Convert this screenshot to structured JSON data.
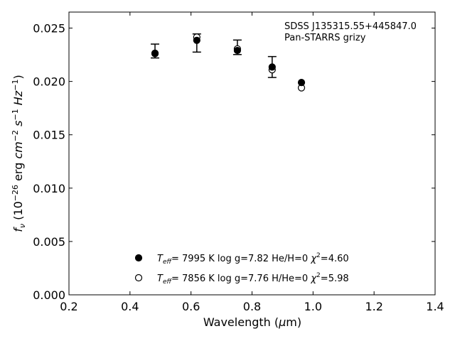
{
  "chart_data": {
    "type": "scatter",
    "annotation": [
      "SDSS J135315.55+445847.0",
      "Pan-STARRS grizy"
    ],
    "xlabel": "Wavelength (μm)",
    "ylabel": "f_ν (10^-26 erg cm^-2 s^-1 Hz^-1)",
    "xlim": [
      0.2,
      1.4
    ],
    "ylim": [
      0.0,
      0.0265
    ],
    "xticks": [
      0.2,
      0.4,
      0.6,
      0.8,
      1.0,
      1.2,
      1.4
    ],
    "xtick_labels": [
      "0.2",
      "0.4",
      "0.6",
      "0.8",
      "1.0",
      "1.2",
      "1.4"
    ],
    "yticks": [
      0.0,
      0.005,
      0.01,
      0.015,
      0.02,
      0.025
    ],
    "ytick_labels": [
      "0.000",
      "0.005",
      "0.010",
      "0.015",
      "0.020",
      "0.025"
    ],
    "grid": false,
    "legend_position": "lower-center",
    "series": [
      {
        "name": "Teff= 7995 K log g=7.82 He/H=0 χ2=4.60",
        "marker": "filled-circle",
        "x": [
          0.482,
          0.619,
          0.752,
          0.866,
          0.962
        ],
        "y": [
          0.02265,
          0.02385,
          0.0229,
          0.02135,
          0.0199
        ]
      },
      {
        "name": "Teff= 7856 K log g=7.76 H/He=0 χ2=5.98",
        "marker": "open-circle",
        "x": [
          0.482,
          0.619,
          0.752,
          0.866,
          0.962
        ],
        "y": [
          0.0226,
          0.02415,
          0.02305,
          0.0211,
          0.0194
        ]
      }
    ],
    "observed": {
      "x": [
        0.482,
        0.619,
        0.752,
        0.866,
        0.962
      ],
      "y": [
        0.02285,
        0.0236,
        0.0232,
        0.02135,
        0.0199
      ],
      "yerr": [
        0.00065,
        0.00085,
        0.00068,
        0.00098,
        0.0
      ]
    },
    "legend_entries": [
      {
        "teff": "7995",
        "logg": "7.82",
        "comp": "He/H=0",
        "chi2": "4.60"
      },
      {
        "teff": "7856",
        "logg": "7.76",
        "comp": "H/He=0",
        "chi2": "5.98"
      }
    ]
  }
}
